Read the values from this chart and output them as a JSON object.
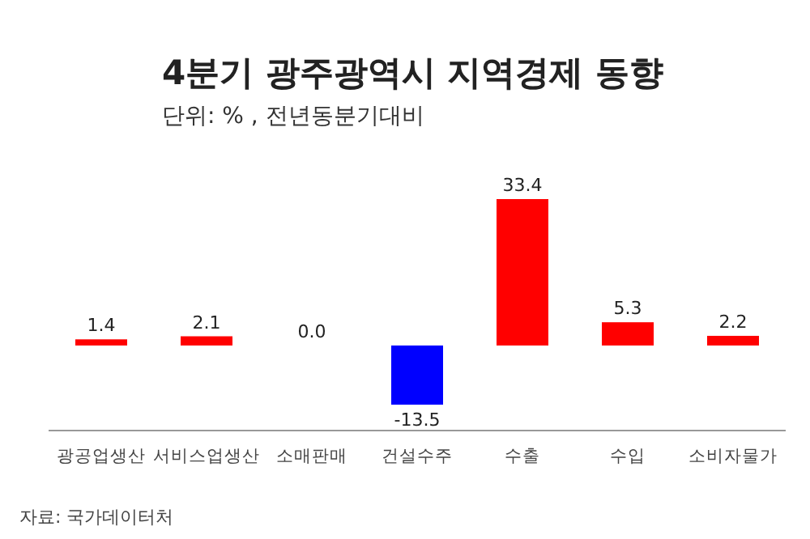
{
  "chart_data": {
    "type": "bar",
    "title": "4분기 광주광역시 지역경제 동향",
    "subtitle": "단위: % , 전년동분기대비",
    "categories": [
      "광공업생산",
      "서비스업생산",
      "소매판매",
      "건설수주",
      "수출",
      "수입",
      "소비자물가"
    ],
    "values": [
      1.4,
      2.1,
      0.0,
      -13.5,
      33.4,
      5.3,
      2.2
    ],
    "colors": [
      "#ff0000",
      "#ff0000",
      "#ff0000",
      "#0000ff",
      "#ff0000",
      "#ff0000",
      "#ff0000"
    ],
    "value_labels": [
      "1.4",
      "2.1",
      "0.0",
      "-13.5",
      "33.4",
      "5.3",
      "2.2"
    ],
    "annotations": [
      "자료: 국가데이터처"
    ]
  }
}
